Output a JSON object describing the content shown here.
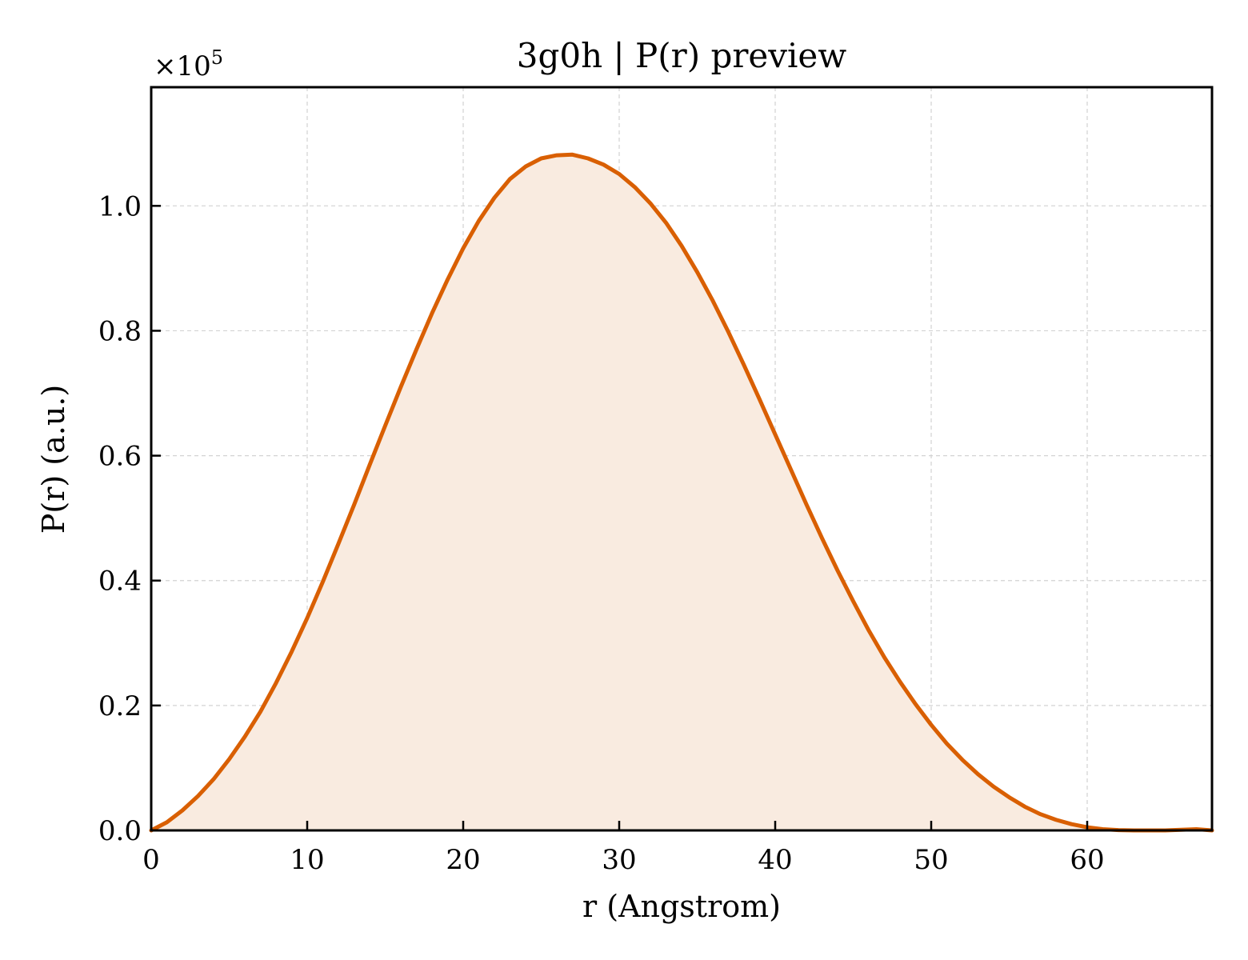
{
  "chart_data": {
    "type": "area",
    "title": "3g0h | P(r) preview",
    "xlabel": "r (Angstrom)",
    "ylabel": "P(r) (a.u.)",
    "y_offset_label": "×10",
    "y_offset_exponent": "5",
    "xlim": [
      0,
      68
    ],
    "ylim": [
      0,
      1.19
    ],
    "xticks": [
      0,
      10,
      20,
      30,
      40,
      50,
      60
    ],
    "xtick_labels": [
      "0",
      "10",
      "20",
      "30",
      "40",
      "50",
      "60"
    ],
    "yticks": [
      0.0,
      0.2,
      0.4,
      0.6,
      0.8,
      1.0
    ],
    "ytick_labels": [
      "0.0",
      "0.2",
      "0.4",
      "0.6",
      "0.8",
      "1.0"
    ],
    "grid": true,
    "legend": "none",
    "colors": {
      "line": "#d95f02",
      "fill": "#f9ebe0",
      "grid": "#d3d3d3",
      "axes": "#000000"
    },
    "series": [
      {
        "x": [
          0,
          1,
          2,
          3,
          4,
          5,
          6,
          7,
          8,
          9,
          10,
          11,
          12,
          13,
          14,
          15,
          16,
          17,
          18,
          19,
          20,
          21,
          22,
          23,
          24,
          25,
          26,
          27,
          28,
          29,
          30,
          31,
          32,
          33,
          34,
          35,
          36,
          37,
          38,
          39,
          40,
          41,
          42,
          43,
          44,
          45,
          46,
          47,
          48,
          49,
          50,
          51,
          52,
          53,
          54,
          55,
          56,
          57,
          58,
          59,
          60,
          61,
          62,
          63,
          64,
          65,
          66,
          67,
          68
        ],
        "y": [
          0.0,
          0.013,
          0.032,
          0.055,
          0.082,
          0.114,
          0.15,
          0.19,
          0.236,
          0.286,
          0.34,
          0.398,
          0.459,
          0.521,
          0.585,
          0.648,
          0.71,
          0.77,
          0.828,
          0.882,
          0.932,
          0.976,
          1.013,
          1.043,
          1.063,
          1.076,
          1.081,
          1.082,
          1.076,
          1.066,
          1.051,
          1.03,
          1.004,
          0.973,
          0.936,
          0.894,
          0.848,
          0.798,
          0.745,
          0.69,
          0.634,
          0.578,
          0.522,
          0.468,
          0.416,
          0.367,
          0.32,
          0.277,
          0.238,
          0.202,
          0.169,
          0.139,
          0.113,
          0.09,
          0.07,
          0.053,
          0.038,
          0.026,
          0.017,
          0.01,
          0.005,
          0.002,
          0.0005,
          0.0,
          0.0,
          0.0,
          0.001,
          0.002,
          0.0
        ]
      }
    ]
  }
}
